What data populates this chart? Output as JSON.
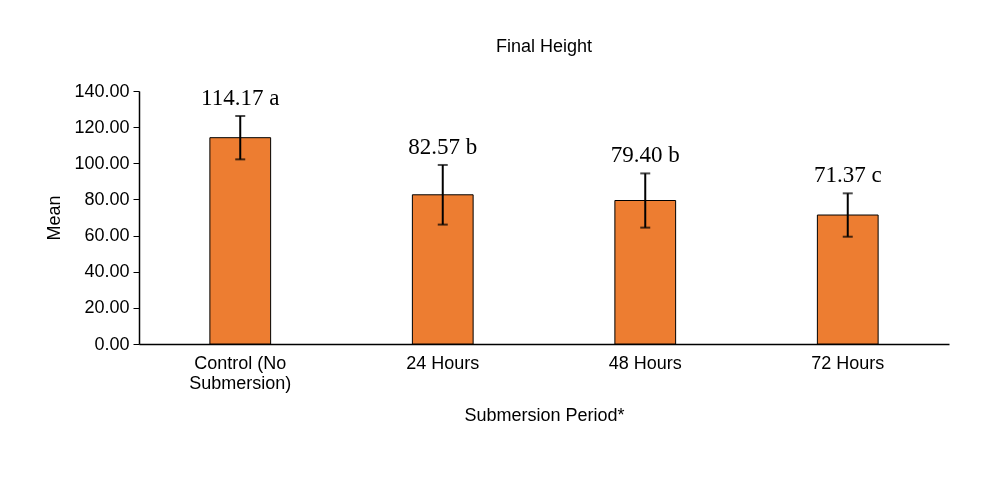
{
  "chart_data": {
    "type": "bar",
    "title": "Final Height",
    "xlabel": "Submersion Period*",
    "ylabel": "Mean",
    "categories": [
      "Control (No Submersion)",
      "24  Hours",
      "48 Hours",
      "72 Hours"
    ],
    "values": [
      114.17,
      82.57,
      79.4,
      71.37
    ],
    "errors": [
      12,
      16.5,
      15,
      12
    ],
    "value_labels": [
      "114.17 a",
      "82.57 b",
      "79.40 b",
      "71.37 c"
    ],
    "color": "#ed7d31",
    "ylim": [
      0,
      140
    ],
    "yticks": [
      {
        "value": 0,
        "label": "0.00"
      },
      {
        "value": 20,
        "label": "20.00"
      },
      {
        "value": 40,
        "label": "40.00"
      },
      {
        "value": 60,
        "label": "60.00"
      },
      {
        "value": 80,
        "label": "80.00"
      },
      {
        "value": 100,
        "label": "100.00"
      },
      {
        "value": 120,
        "label": "120.00"
      },
      {
        "value": 140,
        "label": "140.00"
      }
    ],
    "grid": false
  }
}
